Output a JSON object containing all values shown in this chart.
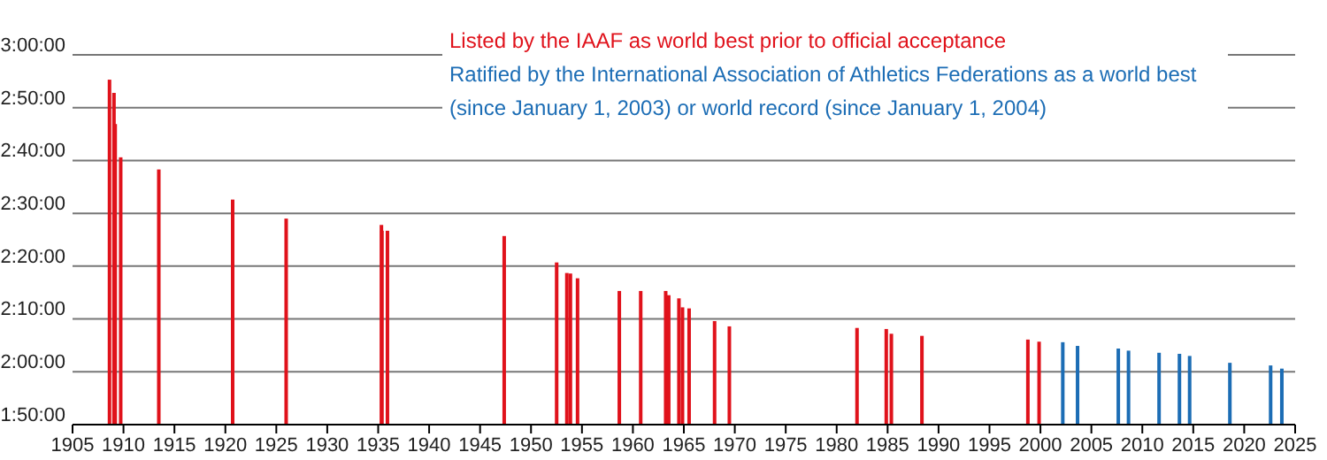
{
  "chart_data": {
    "type": "bar",
    "legend": "top right",
    "grid": "y",
    "xlim": [
      1905,
      2025
    ],
    "xticks": [
      1905,
      1910,
      1915,
      1920,
      1925,
      1930,
      1935,
      1940,
      1945,
      1950,
      1955,
      1960,
      1965,
      1970,
      1975,
      1980,
      1985,
      1990,
      1995,
      2000,
      2005,
      2010,
      2015,
      2020,
      2025
    ],
    "ylim": [
      110,
      180
    ],
    "yticks": [
      {
        "value": 110,
        "label": "1:50:00"
      },
      {
        "value": 120,
        "label": "2:00:00"
      },
      {
        "value": 130,
        "label": "2:10:00"
      },
      {
        "value": 140,
        "label": "2:20:00"
      },
      {
        "value": 150,
        "label": "2:30:00"
      },
      {
        "value": 160,
        "label": "2:40:00"
      },
      {
        "value": 170,
        "label": "2:50:00"
      },
      {
        "value": 180,
        "label": "3:00:00"
      }
    ],
    "series": [
      {
        "name": "Listed by the IAAF as world best prior to official acceptance",
        "color": "#e0121b",
        "x": [
          1908.56,
          1909.0,
          1909.12,
          1909.66,
          1913.4,
          1920.65,
          1925.9,
          1935.25,
          1935.3,
          1935.84,
          1947.3,
          1952.45,
          1953.45,
          1953.8,
          1954.5,
          1958.6,
          1960.7,
          1963.15,
          1963.45,
          1964.45,
          1964.8,
          1965.45,
          1967.95,
          1969.4,
          1981.93,
          1984.8,
          1985.3,
          1988.3,
          1998.7,
          1999.8
        ],
        "values": [
          175.3,
          172.8,
          166.9,
          160.6,
          158.3,
          152.6,
          149.0,
          147.8,
          146.7,
          146.7,
          145.7,
          140.7,
          138.7,
          138.6,
          137.7,
          135.3,
          135.3,
          135.3,
          134.5,
          133.9,
          132.2,
          132.0,
          129.6,
          128.6,
          128.3,
          128.1,
          127.2,
          126.8,
          126.1,
          125.7
        ]
      },
      {
        "name": "Ratified by the International Association of Athletics Federations as a world best (since January 1, 2003) or world record (since January 1, 2004)",
        "color": "#1c6db5",
        "x": [
          2002.3,
          2003.75,
          2007.75,
          2008.75,
          2011.75,
          2013.75,
          2014.75,
          2018.7,
          2022.7,
          2023.8
        ],
        "values": [
          125.6,
          124.9,
          124.4,
          124.0,
          123.6,
          123.4,
          123.0,
          121.7,
          121.2,
          120.6
        ]
      }
    ]
  }
}
